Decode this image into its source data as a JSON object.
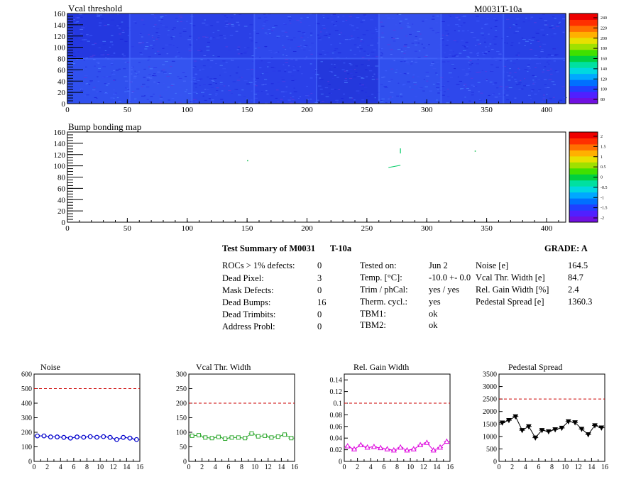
{
  "heatmap_top": {
    "title": "Vcal threshold",
    "module_label": "M0031T-10a",
    "x_ticks": [
      "0",
      "50",
      "100",
      "150",
      "200",
      "250",
      "300",
      "350",
      "400"
    ],
    "y_ticks": [
      "0",
      "20",
      "40",
      "60",
      "80",
      "100",
      "120",
      "140",
      "160"
    ],
    "z_ticks": [
      "80",
      "100",
      "120",
      "140",
      "160",
      "180",
      "200",
      "220",
      "240"
    ]
  },
  "heatmap_bottom": {
    "title": "Bump bonding map",
    "x_ticks": [
      "0",
      "50",
      "100",
      "150",
      "200",
      "250",
      "300",
      "350",
      "400"
    ],
    "y_ticks": [
      "0",
      "20",
      "40",
      "60",
      "80",
      "100",
      "120",
      "140",
      "160"
    ],
    "z_ticks": [
      "-2",
      "-1.5",
      "-1",
      "-0.5",
      "0",
      "0.5",
      "1",
      "1.5",
      "2"
    ]
  },
  "summary": {
    "title_left": "Test Summary of M0031",
    "title_right": "T-10a",
    "grade_label": "GRADE:  A",
    "left": [
      {
        "label": "ROCs > 1% defects:",
        "value": "0"
      },
      {
        "label": "Dead Pixel:",
        "value": "3"
      },
      {
        "label": "Mask Defects:",
        "value": "0"
      },
      {
        "label": "Dead Bumps:",
        "value": "16"
      },
      {
        "label": "Dead Trimbits:",
        "value": "0"
      },
      {
        "label": "Address Probl:",
        "value": "0"
      }
    ],
    "middle": [
      {
        "label": "Tested on:",
        "value": "Jun 2"
      },
      {
        "label": "Temp. [°C]:",
        "value": "-10.0 +- 0.0"
      },
      {
        "label": "Trim / phCal:",
        "value": "yes / yes"
      },
      {
        "label": "Therm. cycl.:",
        "value": "yes"
      },
      {
        "label": "TBM1:",
        "value": "ok"
      },
      {
        "label": "TBM2:",
        "value": "ok"
      }
    ],
    "right": [
      {
        "label": "Noise [e]",
        "value": "164.5"
      },
      {
        "label": "Vcal Thr. Width [e]",
        "value": "84.7"
      },
      {
        "label": "Rel. Gain Width [%]",
        "value": "2.4"
      },
      {
        "label": "Pedestal Spread [e]",
        "value": "1360.3"
      }
    ]
  },
  "chart_data": [
    {
      "type": "line",
      "title": "Noise",
      "x": [
        0,
        1,
        2,
        3,
        4,
        5,
        6,
        7,
        8,
        9,
        10,
        11,
        12,
        13,
        14,
        15
      ],
      "values": [
        175,
        175,
        168,
        168,
        165,
        160,
        168,
        166,
        170,
        166,
        170,
        165,
        150,
        165,
        160,
        150
      ],
      "ylim": [
        0,
        600
      ],
      "yticks": [
        0,
        100,
        200,
        300,
        400,
        500,
        600
      ],
      "xlim": [
        0,
        16
      ],
      "xticks": [
        0,
        2,
        4,
        6,
        8,
        10,
        12,
        14,
        16
      ],
      "threshold": 500,
      "color": "#0000cc",
      "marker": "circle"
    },
    {
      "type": "line",
      "title": "Vcal Thr. Width",
      "x": [
        0,
        1,
        2,
        3,
        4,
        5,
        6,
        7,
        8,
        9,
        10,
        11,
        12,
        13,
        14,
        15
      ],
      "values": [
        88,
        90,
        82,
        80,
        84,
        78,
        82,
        82,
        80,
        96,
        86,
        88,
        82,
        85,
        92,
        80
      ],
      "ylim": [
        0,
        300
      ],
      "yticks": [
        0,
        50,
        100,
        150,
        200,
        250,
        300
      ],
      "xlim": [
        0,
        16
      ],
      "xticks": [
        0,
        2,
        4,
        6,
        8,
        10,
        12,
        14,
        16
      ],
      "threshold": 200,
      "color": "#33aa33",
      "marker": "square"
    },
    {
      "type": "line",
      "title": "Rel. Gain Width",
      "x": [
        0,
        1,
        2,
        3,
        4,
        5,
        6,
        7,
        8,
        9,
        10,
        11,
        12,
        13,
        14,
        15
      ],
      "values": [
        0.026,
        0.021,
        0.028,
        0.024,
        0.025,
        0.023,
        0.021,
        0.019,
        0.024,
        0.019,
        0.021,
        0.028,
        0.032,
        0.019,
        0.024,
        0.034
      ],
      "ylim": [
        0,
        0.15
      ],
      "yticks": [
        0,
        0.02,
        0.04,
        0.06,
        0.08,
        0.1,
        0.12,
        0.14
      ],
      "xlim": [
        0,
        16
      ],
      "xticks": [
        0,
        2,
        4,
        6,
        8,
        10,
        12,
        14,
        16
      ],
      "threshold": 0.1,
      "color": "#dd00dd",
      "marker": "triangle"
    },
    {
      "type": "line",
      "title": "Pedestal Spread",
      "x": [
        0,
        1,
        2,
        3,
        4,
        5,
        6,
        7,
        8,
        9,
        10,
        11,
        12,
        13,
        14,
        15
      ],
      "values": [
        1550,
        1650,
        1800,
        1250,
        1400,
        950,
        1250,
        1200,
        1280,
        1340,
        1600,
        1560,
        1300,
        1080,
        1440,
        1350
      ],
      "ylim": [
        0,
        3500
      ],
      "yticks": [
        0,
        500,
        1000,
        1500,
        2000,
        2500,
        3000,
        3500
      ],
      "xlim": [
        0,
        16
      ],
      "xticks": [
        0,
        2,
        4,
        6,
        8,
        10,
        12,
        14,
        16
      ],
      "threshold": 2500,
      "color": "#000000",
      "marker": "triangle-down"
    }
  ]
}
